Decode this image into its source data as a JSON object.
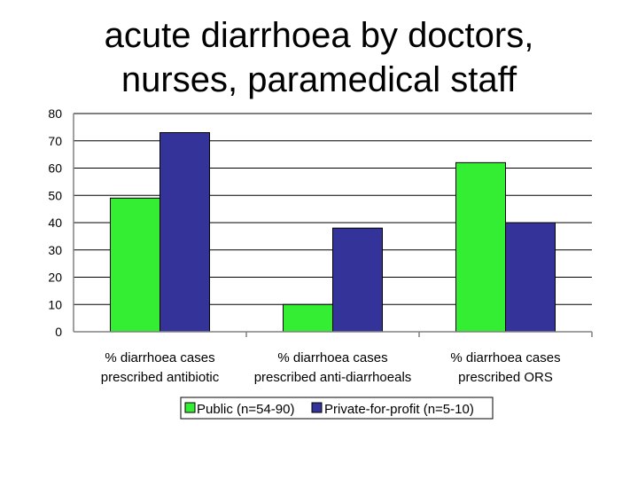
{
  "title_lines": [
    "acute diarrhoea by doctors,",
    "nurses, paramedical staff"
  ],
  "chart_data": {
    "type": "bar",
    "categories": [
      [
        "% diarrhoea cases",
        "prescribed antibiotic"
      ],
      [
        "% diarrhoea cases",
        "prescribed anti-diarrhoeals"
      ],
      [
        "% diarrhoea cases",
        "prescribed ORS"
      ]
    ],
    "series": [
      {
        "name": "Public (n=54-90)",
        "values": [
          49,
          10,
          62
        ],
        "color": "#33ee33"
      },
      {
        "name": "Private-for-profit (n=5-10)",
        "values": [
          73,
          38,
          40
        ],
        "color": "#333399"
      }
    ],
    "yticks": [
      0,
      10,
      20,
      30,
      40,
      50,
      60,
      70,
      80
    ],
    "ylim": [
      0,
      80
    ],
    "grid": true,
    "legend_position": "bottom"
  }
}
